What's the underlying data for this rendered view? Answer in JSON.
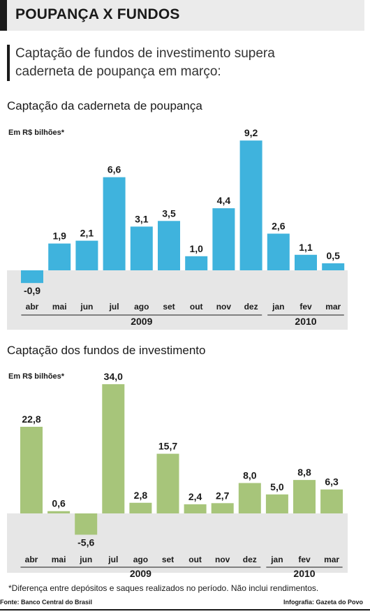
{
  "header": {
    "title": "POUPANÇA X FUNDOS"
  },
  "subtitle": "Captação de fundos de investimento supera caderneta de poupança em março:",
  "footnote": "*Diferença entre depósitos e saques realizados no período. Não inclui rendimentos.",
  "source": "Fonte: Banco Central do Brasil",
  "credit": "Infografia: Gazeta do Povo",
  "colors": {
    "poupanca": "#3fb3dd",
    "fundos": "#a7c57a",
    "band": "#e6e6e6",
    "text": "#1a1a1a"
  },
  "chart_data": [
    {
      "type": "bar",
      "title": "Captação da caderneta de poupança",
      "ylabel": "Em R$ bilhões*",
      "categories": [
        "abr",
        "mai",
        "jun",
        "jul",
        "ago",
        "set",
        "out",
        "nov",
        "dez",
        "jan",
        "fev",
        "mar"
      ],
      "values": [
        -0.9,
        1.9,
        2.1,
        6.6,
        3.1,
        3.5,
        1.0,
        4.4,
        9.2,
        2.6,
        1.1,
        0.5
      ],
      "labels": [
        "-0,9",
        "1,9",
        "2,1",
        "6,6",
        "3,1",
        "3,5",
        "1,0",
        "4,4",
        "9,2",
        "2,6",
        "1,1",
        "0,5"
      ],
      "years": [
        {
          "label": "2009",
          "from": 0,
          "to": 8
        },
        {
          "label": "2010",
          "from": 9,
          "to": 11
        }
      ],
      "grid": false
    },
    {
      "type": "bar",
      "title": "Captação dos fundos de investimento",
      "ylabel": "Em R$ bilhões*",
      "categories": [
        "abr",
        "mai",
        "jun",
        "jul",
        "ago",
        "set",
        "out",
        "nov",
        "dez",
        "jan",
        "fev",
        "mar"
      ],
      "values": [
        22.8,
        0.6,
        -5.6,
        34.0,
        2.8,
        15.7,
        2.4,
        2.7,
        8.0,
        5.0,
        8.8,
        6.3
      ],
      "labels": [
        "22,8",
        "0,6",
        "-5,6",
        "34,0",
        "2,8",
        "15,7",
        "2,4",
        "2,7",
        "8,0",
        "5,0",
        "8,8",
        "6,3"
      ],
      "years": [
        {
          "label": "2009",
          "from": 0,
          "to": 8
        },
        {
          "label": "2010",
          "from": 9,
          "to": 11
        }
      ],
      "grid": false
    }
  ]
}
